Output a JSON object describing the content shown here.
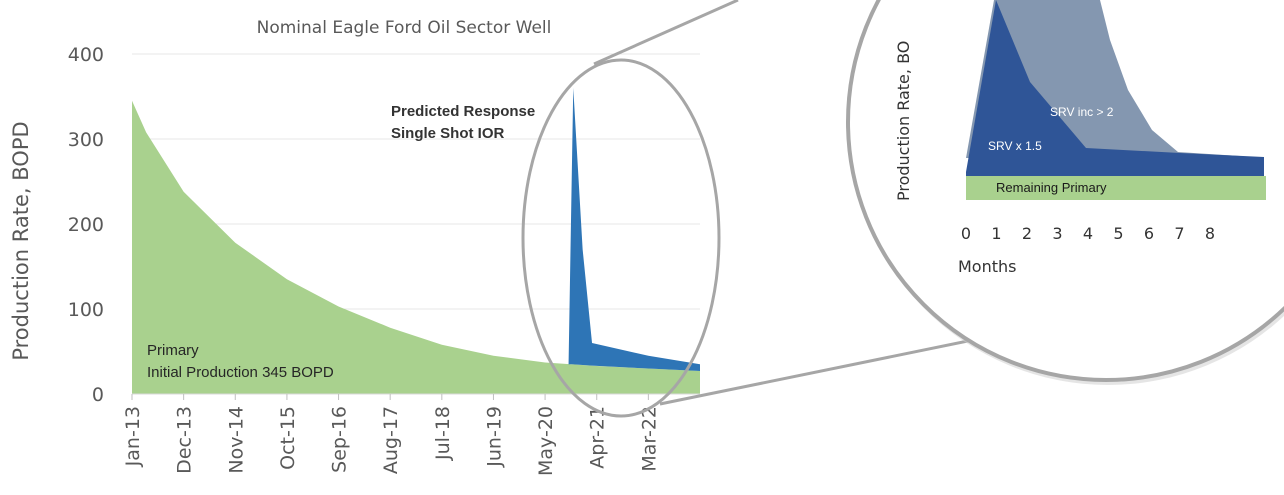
{
  "chart_data": [
    {
      "type": "area",
      "title": "Nominal Eagle Ford Oil Sector Well",
      "ylabel": "Production Rate, BOPD",
      "ylim": [
        0,
        400
      ],
      "yticks": [
        0,
        100,
        200,
        300,
        400
      ],
      "xticks": [
        "Jan-13",
        "Dec-13",
        "Nov-14",
        "Oct-15",
        "Sep-16",
        "Aug-17",
        "Jul-18",
        "Jun-19",
        "May-20",
        "Apr-21",
        "Mar-22"
      ],
      "grid": true,
      "series": [
        {
          "name": "Primary",
          "color": "#a9d18e",
          "x": [
            "Jan-13",
            "Apr-13",
            "Dec-13",
            "Nov-14",
            "Oct-15",
            "Sep-16",
            "Aug-17",
            "Jul-18",
            "Jun-19",
            "May-20",
            "Apr-21",
            "Mar-22",
            "Feb-23"
          ],
          "values": [
            345,
            308,
            238,
            178,
            135,
            103,
            78,
            58,
            45,
            37,
            33,
            30,
            27
          ]
        },
        {
          "name": "Single Shot IOR",
          "color": "#2e75b6",
          "x": [
            "Oct-20",
            "Nov-20",
            "Jan-21",
            "Mar-21",
            "Mar-22",
            "Feb-23"
          ],
          "values": [
            35,
            360,
            170,
            60,
            45,
            35
          ]
        }
      ],
      "annotations": [
        {
          "text_lines": [
            "Primary",
            "Initial Production 345 BOPD"
          ]
        },
        {
          "text_lines": [
            "Predicted Response",
            "Single Shot IOR"
          ]
        }
      ]
    },
    {
      "type": "area",
      "xlabel": "Months",
      "ylabel": "Production Rate, BO",
      "xticks": [
        "0",
        "1",
        "2",
        "3",
        "4",
        "5",
        "6",
        "7",
        "8"
      ],
      "series": [
        {
          "name": "SRV inc > 2",
          "color": "#8497b0"
        },
        {
          "name": "SRV x 1.5",
          "color": "#2f5597"
        },
        {
          "name": "Remaining Primary",
          "color": "#a9d18e"
        }
      ]
    }
  ]
}
